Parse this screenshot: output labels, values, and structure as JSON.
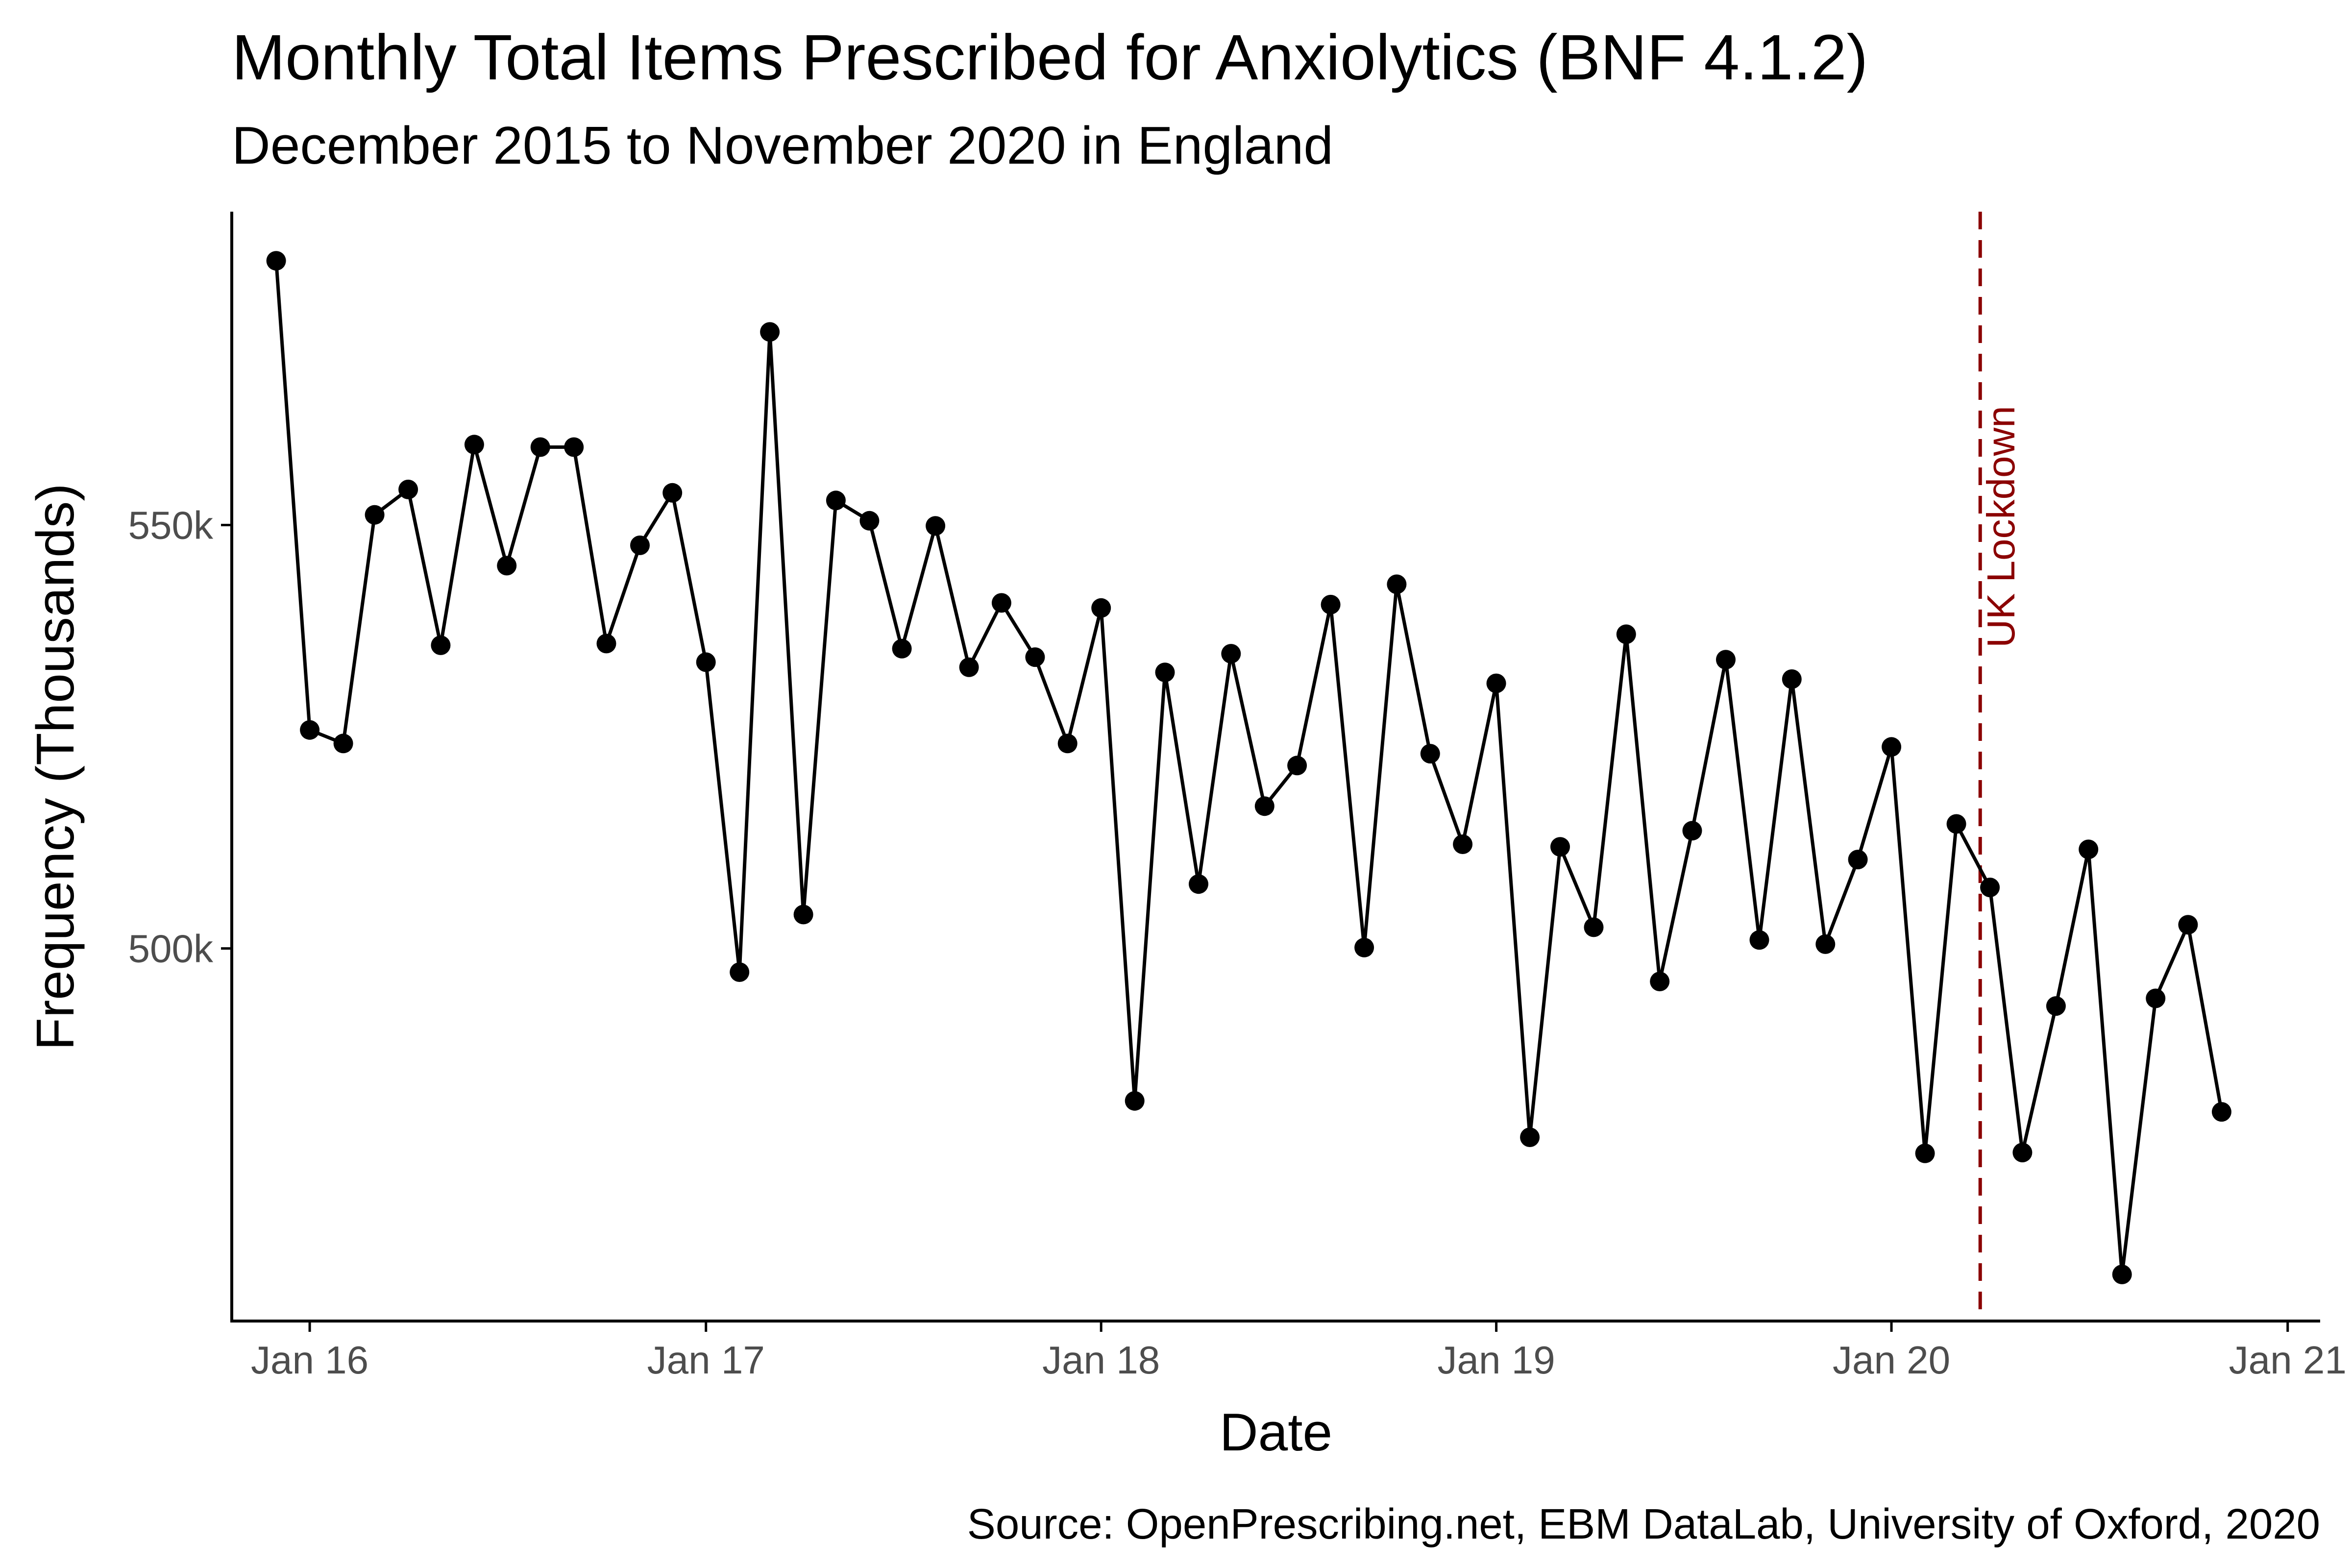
{
  "chart_data": {
    "type": "line",
    "title": "Monthly Total Items Prescribed for Anxiolytics (BNF 4.1.2)",
    "subtitle": "December 2015 to November 2020 in England",
    "xlabel": "Date",
    "ylabel": "Frequency (Thousands)",
    "caption": "Source: OpenPrescribing.net, EBM DataLab, University of Oxford, 2020",
    "x_ticks": [
      "Jan 16",
      "Jan 17",
      "Jan 18",
      "Jan 19",
      "Jan 20",
      "Jan 21"
    ],
    "y_ticks": [
      "500k",
      "550k"
    ],
    "y_tick_values": [
      500000,
      550000
    ],
    "xlim": [
      "2015-10-21",
      "2021-01-31"
    ],
    "ylim": [
      456000,
      587000
    ],
    "grid": false,
    "legend": "none",
    "colors": {
      "line": "#000000",
      "points": "#000000",
      "annotation": "#8b0000"
    },
    "annotation": {
      "label": "UK Lockdown",
      "date": "2020-03-23"
    },
    "series": [
      {
        "x": [
          "2015-12-01",
          "2016-01-01",
          "2016-02-01",
          "2016-03-01",
          "2016-04-01",
          "2016-05-01",
          "2016-06-01",
          "2016-07-01",
          "2016-08-01",
          "2016-09-01",
          "2016-10-01",
          "2016-11-01",
          "2016-12-01",
          "2017-01-01",
          "2017-02-01",
          "2017-03-01",
          "2017-04-01",
          "2017-05-01",
          "2017-06-01",
          "2017-07-01",
          "2017-08-01",
          "2017-09-01",
          "2017-10-01",
          "2017-11-01",
          "2017-12-01",
          "2018-01-01",
          "2018-02-01",
          "2018-03-01",
          "2018-04-01",
          "2018-05-01",
          "2018-06-01",
          "2018-07-01",
          "2018-08-01",
          "2018-09-01",
          "2018-10-01",
          "2018-11-01",
          "2018-12-01",
          "2019-01-01",
          "2019-02-01",
          "2019-03-01",
          "2019-04-01",
          "2019-05-01",
          "2019-06-01",
          "2019-07-01",
          "2019-08-01",
          "2019-09-01",
          "2019-10-01",
          "2019-11-01",
          "2019-12-01",
          "2020-01-01",
          "2020-02-01",
          "2020-03-01",
          "2020-04-01",
          "2020-05-01",
          "2020-06-01",
          "2020-07-01",
          "2020-08-01",
          "2020-09-01",
          "2020-10-01",
          "2020-11-01"
        ],
        "values": [
          581200,
          525800,
          524200,
          551200,
          554200,
          535800,
          559500,
          545200,
          559200,
          559200,
          536000,
          547600,
          553800,
          533800,
          497200,
          572800,
          504000,
          552900,
          550500,
          535400,
          549900,
          533200,
          540800,
          534400,
          524200,
          540200,
          482000,
          532600,
          507600,
          534800,
          516800,
          521600,
          540600,
          500100,
          543000,
          523000,
          512300,
          531300,
          477700,
          512000,
          502500,
          537100,
          496100,
          513900,
          534100,
          501000,
          531800,
          500500,
          510500,
          523800,
          475800,
          514700,
          507200,
          475900,
          493200,
          511700,
          461500,
          494100,
          502800,
          480700
        ]
      }
    ]
  }
}
